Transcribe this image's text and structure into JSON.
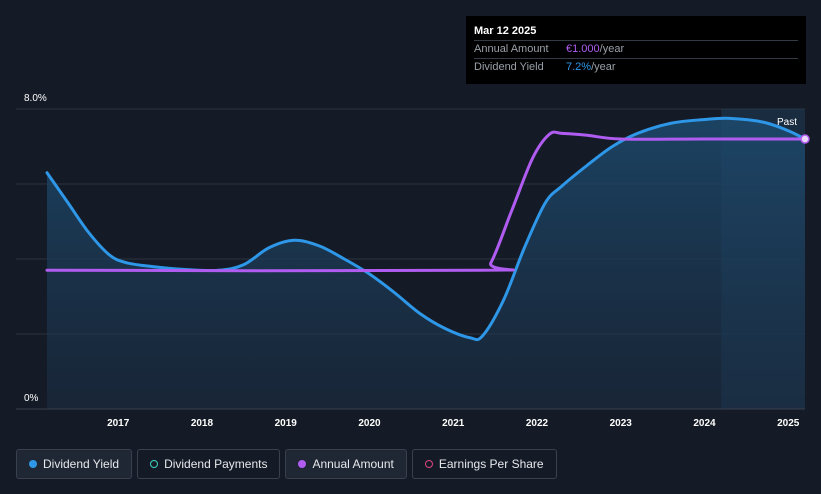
{
  "tooltip": {
    "date": "Mar 12 2025",
    "rows": [
      {
        "label": "Annual Amount",
        "value": "€1.000",
        "unit": "/year",
        "color": "#b05cf0"
      },
      {
        "label": "Dividend Yield",
        "value": "7.2%",
        "unit": "/year",
        "color": "#2e97e8"
      }
    ]
  },
  "legend": [
    {
      "label": "Dividend Yield",
      "color": "#2e97e8",
      "filled": true
    },
    {
      "label": "Dividend Payments",
      "color": "#3ed3c0",
      "filled": false
    },
    {
      "label": "Annual Amount",
      "color": "#b05cf0",
      "filled": true
    },
    {
      "label": "Earnings Per Share",
      "color": "#e0457b",
      "filled": false
    }
  ],
  "chart_data": {
    "type": "line",
    "xlabel": "",
    "ylabel": "",
    "y_ticks": [
      "0%",
      "8.0%"
    ],
    "x_ticks": [
      "2017",
      "2018",
      "2019",
      "2020",
      "2021",
      "2022",
      "2023",
      "2024",
      "2025"
    ],
    "ylim": [
      0,
      8.0
    ],
    "xlim": [
      2016.15,
      2025.2
    ],
    "past_label": "Past",
    "grid": true,
    "series": [
      {
        "name": "Dividend Yield",
        "color": "#2e97e8",
        "area": true,
        "points": [
          [
            2016.15,
            6.3
          ],
          [
            2016.4,
            5.5
          ],
          [
            2016.65,
            4.7
          ],
          [
            2016.9,
            4.1
          ],
          [
            2017.1,
            3.9
          ],
          [
            2017.4,
            3.8
          ],
          [
            2017.8,
            3.72
          ],
          [
            2018.2,
            3.7
          ],
          [
            2018.5,
            3.85
          ],
          [
            2018.8,
            4.3
          ],
          [
            2019.1,
            4.5
          ],
          [
            2019.4,
            4.35
          ],
          [
            2019.7,
            4.0
          ],
          [
            2020.0,
            3.6
          ],
          [
            2020.3,
            3.1
          ],
          [
            2020.6,
            2.55
          ],
          [
            2020.9,
            2.15
          ],
          [
            2021.2,
            1.9
          ],
          [
            2021.35,
            1.95
          ],
          [
            2021.6,
            2.9
          ],
          [
            2021.85,
            4.3
          ],
          [
            2022.1,
            5.5
          ],
          [
            2022.3,
            5.95
          ],
          [
            2022.6,
            6.5
          ],
          [
            2022.9,
            7.0
          ],
          [
            2023.2,
            7.35
          ],
          [
            2023.6,
            7.62
          ],
          [
            2024.0,
            7.72
          ],
          [
            2024.3,
            7.75
          ],
          [
            2024.7,
            7.65
          ],
          [
            2025.0,
            7.42
          ],
          [
            2025.2,
            7.2
          ]
        ]
      },
      {
        "name": "Annual Amount",
        "color": "#b05cf0",
        "area": false,
        "points": [
          [
            2016.15,
            3.7
          ],
          [
            2021.3,
            3.7
          ],
          [
            2021.45,
            3.9
          ],
          [
            2021.7,
            5.3
          ],
          [
            2021.95,
            6.7
          ],
          [
            2022.15,
            7.33
          ],
          [
            2022.3,
            7.35
          ],
          [
            2022.6,
            7.3
          ],
          [
            2023.0,
            7.2
          ],
          [
            2024.0,
            7.2
          ],
          [
            2025.2,
            7.2
          ]
        ]
      }
    ],
    "forecast_start": 2024.2
  }
}
